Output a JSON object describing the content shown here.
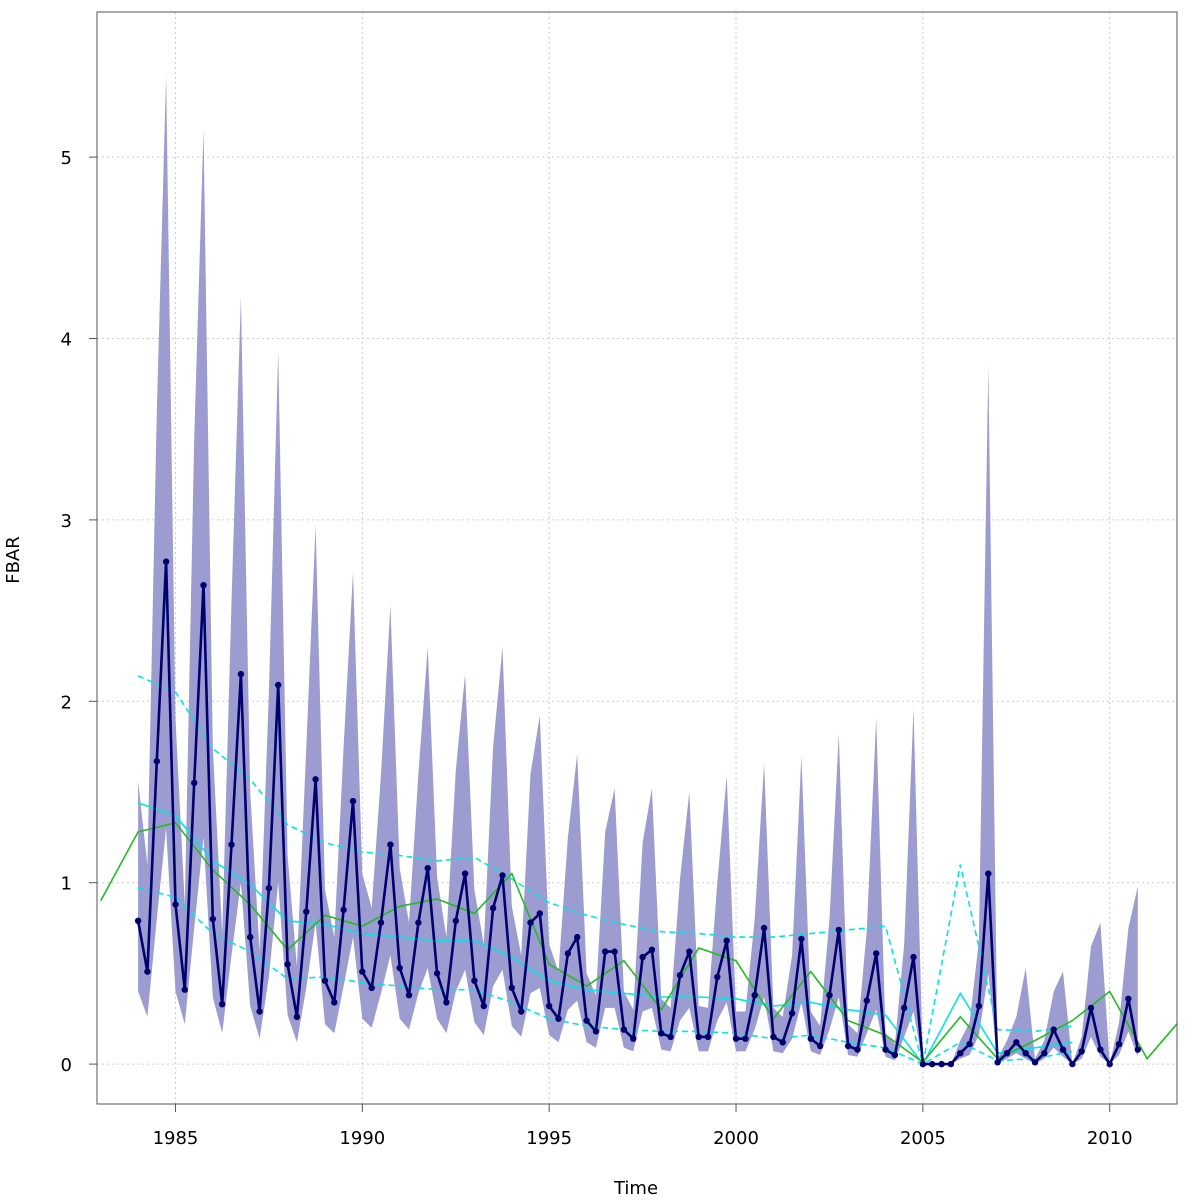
{
  "chart_data": {
    "type": "line",
    "title": "",
    "xlabel": "Time",
    "ylabel": "FBAR",
    "xlim": [
      1982.9,
      1911.8
    ],
    "ylim": [
      -0.22,
      5.8
    ],
    "grid": true,
    "x_ticks": [
      1985,
      1990,
      1995,
      2000,
      2005,
      2010
    ],
    "y_ticks": [
      0,
      1,
      2,
      3,
      4,
      5
    ],
    "colors": {
      "band": "#9c9cd0",
      "quarterly": "#00006e",
      "annual_green": "#22bb22",
      "cyan": "#00e5e5",
      "grid": "#cccccc",
      "frame": "#555555"
    },
    "quarterly_series": {
      "start": 1984.0,
      "step": 0.25,
      "values": [
        0.79,
        0.51,
        1.67,
        2.77,
        0.88,
        0.41,
        1.55,
        2.64,
        0.8,
        0.33,
        1.21,
        2.15,
        0.7,
        0.29,
        0.97,
        2.09,
        0.55,
        0.26,
        0.84,
        1.57,
        0.46,
        0.34,
        0.85,
        1.45,
        0.51,
        0.42,
        0.78,
        1.21,
        0.53,
        0.38,
        0.78,
        1.08,
        0.5,
        0.34,
        0.79,
        1.05,
        0.46,
        0.32,
        0.86,
        1.04,
        0.42,
        0.29,
        0.78,
        0.83,
        0.32,
        0.25,
        0.61,
        0.7,
        0.24,
        0.18,
        0.62,
        0.62,
        0.19,
        0.14,
        0.59,
        0.63,
        0.17,
        0.15,
        0.49,
        0.62,
        0.15,
        0.15,
        0.48,
        0.68,
        0.14,
        0.14,
        0.38,
        0.75,
        0.15,
        0.12,
        0.28,
        0.69,
        0.14,
        0.1,
        0.38,
        0.74,
        0.1,
        0.08,
        0.35,
        0.61,
        0.08,
        0.05,
        0.31,
        0.59,
        0.0,
        0.0,
        0.0,
        0.0,
        0.06,
        0.11,
        0.32,
        1.05,
        0.01,
        0.06,
        0.12,
        0.06,
        0.01,
        0.06,
        0.19,
        0.08,
        0.0,
        0.07,
        0.31,
        0.08,
        0.0,
        0.11,
        0.36,
        0.08
      ],
      "band_lower": [
        0.4,
        0.26,
        0.8,
        1.3,
        0.4,
        0.22,
        0.75,
        1.25,
        0.37,
        0.17,
        0.6,
        1.0,
        0.32,
        0.14,
        0.48,
        1.0,
        0.27,
        0.12,
        0.42,
        0.78,
        0.22,
        0.17,
        0.43,
        0.7,
        0.25,
        0.2,
        0.39,
        0.6,
        0.25,
        0.19,
        0.39,
        0.53,
        0.25,
        0.17,
        0.4,
        0.52,
        0.23,
        0.16,
        0.43,
        0.52,
        0.21,
        0.15,
        0.39,
        0.42,
        0.16,
        0.12,
        0.3,
        0.35,
        0.12,
        0.09,
        0.31,
        0.31,
        0.09,
        0.07,
        0.29,
        0.31,
        0.08,
        0.07,
        0.24,
        0.31,
        0.07,
        0.07,
        0.24,
        0.34,
        0.07,
        0.07,
        0.19,
        0.37,
        0.07,
        0.06,
        0.14,
        0.34,
        0.07,
        0.05,
        0.19,
        0.37,
        0.05,
        0.04,
        0.17,
        0.3,
        0.04,
        0.02,
        0.15,
        0.29,
        0.0,
        0.0,
        0.0,
        0.0,
        0.03,
        0.05,
        0.16,
        0.5,
        0.0,
        0.03,
        0.06,
        0.03,
        0.0,
        0.03,
        0.09,
        0.04,
        0.0,
        0.03,
        0.15,
        0.04,
        0.0,
        0.05,
        0.18,
        0.04
      ],
      "band_upper": [
        1.56,
        1.1,
        3.6,
        5.45,
        1.9,
        0.88,
        3.45,
        5.15,
        1.75,
        0.72,
        2.55,
        4.23,
        1.5,
        0.62,
        2.05,
        3.93,
        1.15,
        0.54,
        1.75,
        2.97,
        0.96,
        0.7,
        1.75,
        2.71,
        1.05,
        0.86,
        1.6,
        2.53,
        1.08,
        0.78,
        1.6,
        2.3,
        1.03,
        0.7,
        1.62,
        2.15,
        0.96,
        0.66,
        1.75,
        2.3,
        0.87,
        0.6,
        1.6,
        1.92,
        0.66,
        0.51,
        1.25,
        1.71,
        0.5,
        0.38,
        1.28,
        1.52,
        0.4,
        0.3,
        1.22,
        1.52,
        0.36,
        0.31,
        1.02,
        1.5,
        0.32,
        0.31,
        1.0,
        1.59,
        0.29,
        0.29,
        0.8,
        1.66,
        0.31,
        0.26,
        0.6,
        1.7,
        0.29,
        0.21,
        0.8,
        1.82,
        0.22,
        0.17,
        0.74,
        1.91,
        0.17,
        0.11,
        0.66,
        1.96,
        0.0,
        0.0,
        0.0,
        0.0,
        0.13,
        0.23,
        0.68,
        3.85,
        0.03,
        0.13,
        0.26,
        0.53,
        0.03,
        0.13,
        0.4,
        0.51,
        0.0,
        0.15,
        0.65,
        0.78,
        0.0,
        0.23,
        0.75,
        0.98
      ]
    },
    "green_series": {
      "x": [
        1983,
        1984,
        1985,
        1986,
        1987,
        1988,
        1989,
        1990,
        1991,
        1992,
        1993,
        1994,
        1995,
        1996,
        1997,
        1998,
        1999,
        2000,
        2001,
        2002,
        2003,
        2004,
        2005,
        2006,
        2007,
        2008,
        2009,
        2010,
        2011,
        2012
      ],
      "values": [
        0.9,
        1.28,
        1.33,
        1.07,
        0.88,
        0.63,
        0.82,
        0.76,
        0.87,
        0.91,
        0.83,
        1.05,
        0.55,
        0.43,
        0.57,
        0.3,
        0.64,
        0.57,
        0.25,
        0.51,
        0.24,
        0.16,
        0.01,
        0.26,
        0.03,
        0.13,
        0.24,
        0.4,
        0.03,
        0.27
      ]
    },
    "cyan_mean": {
      "x": [
        1984,
        1985,
        1986,
        1987,
        1988,
        1989,
        1990,
        1991,
        1992,
        1993,
        1994,
        1995,
        1996,
        1997,
        1998,
        1999,
        2000,
        2001,
        2002,
        2003,
        2004,
        2005,
        2006,
        2007,
        2008,
        2009
      ],
      "values": [
        1.44,
        1.37,
        1.12,
        0.99,
        0.79,
        0.77,
        0.72,
        0.7,
        0.68,
        0.68,
        0.59,
        0.46,
        0.41,
        0.39,
        0.37,
        0.37,
        0.36,
        0.32,
        0.34,
        0.3,
        0.27,
        0.0,
        0.39,
        0.06,
        0.09,
        0.12
      ]
    },
    "cyan_upper": {
      "x": [
        1984,
        1985,
        1986,
        1987,
        1988,
        1989,
        1990,
        1991,
        1992,
        1993,
        1994,
        1995,
        1996,
        1997,
        1998,
        1999,
        2000,
        2001,
        2002,
        2003,
        2004,
        2005,
        2006,
        2007,
        2008,
        2009
      ],
      "values": [
        2.14,
        2.05,
        1.74,
        1.57,
        1.32,
        1.22,
        1.17,
        1.15,
        1.12,
        1.14,
        1.02,
        0.89,
        0.82,
        0.77,
        0.73,
        0.72,
        0.7,
        0.7,
        0.72,
        0.74,
        0.76,
        0.0,
        1.1,
        0.19,
        0.18,
        0.21
      ]
    },
    "cyan_lower": {
      "x": [
        1984,
        1985,
        1986,
        1987,
        1988,
        1989,
        1990,
        1991,
        1992,
        1993,
        1994,
        1995,
        1996,
        1997,
        1998,
        1999,
        2000,
        2001,
        2002,
        2003,
        2004,
        2005,
        2006,
        2007,
        2008,
        2009
      ],
      "values": [
        0.97,
        0.92,
        0.72,
        0.62,
        0.47,
        0.48,
        0.45,
        0.43,
        0.41,
        0.41,
        0.34,
        0.25,
        0.21,
        0.19,
        0.18,
        0.18,
        0.17,
        0.14,
        0.16,
        0.12,
        0.09,
        0.0,
        0.12,
        0.02,
        0.03,
        0.07
      ]
    }
  }
}
